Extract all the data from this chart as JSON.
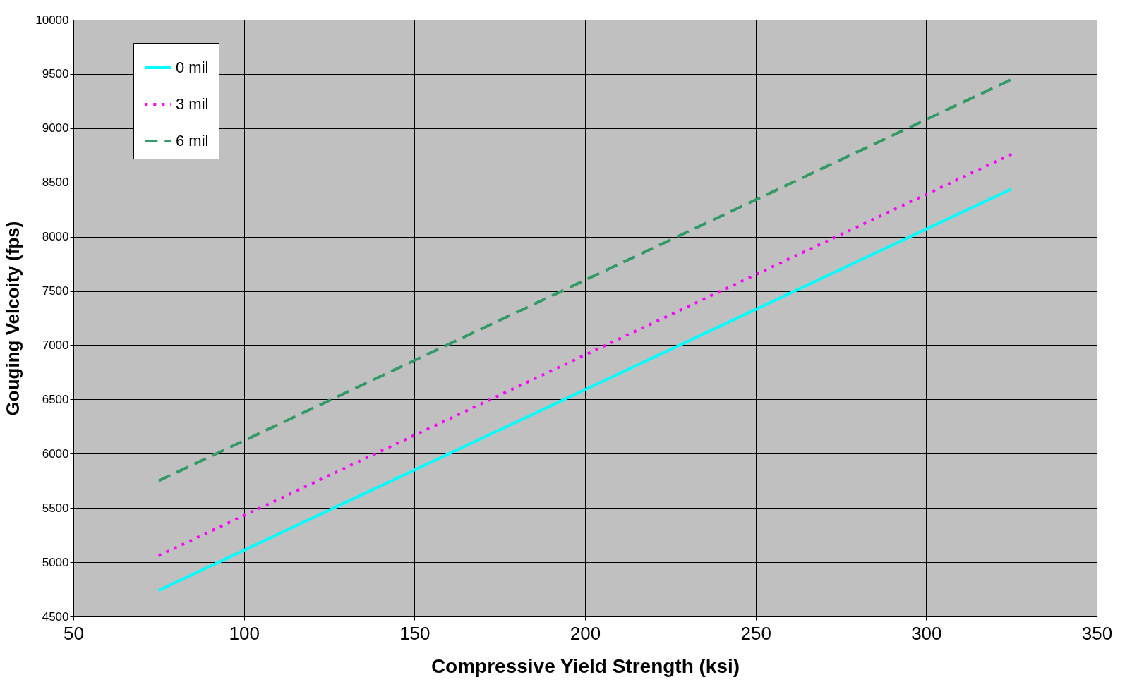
{
  "chart_data": {
    "type": "line",
    "xlabel": "Compressive Yield Strength (ksi)",
    "ylabel": "Gouging Velcoity (fps)",
    "xlim": [
      50,
      350
    ],
    "xticks": [
      50,
      100,
      150,
      200,
      250,
      300,
      350
    ],
    "ylim": [
      4500,
      10000
    ],
    "yticks": [
      4500,
      5000,
      5500,
      6000,
      6500,
      7000,
      7500,
      8000,
      8500,
      9000,
      9500,
      10000
    ],
    "grid": true,
    "legend": "top left",
    "marker": "none",
    "series": [
      {
        "name": "0 mil",
        "color": "#00ffff",
        "line_style": "solid",
        "x": [
          75,
          200,
          325
        ],
        "values": [
          4740,
          6590,
          8440
        ]
      },
      {
        "name": "3 mil",
        "color": "#ff00ff",
        "line_style": "dotted",
        "x": [
          75,
          200,
          325
        ],
        "values": [
          5060,
          6910,
          8760
        ]
      },
      {
        "name": "6 mil",
        "color": "#339966",
        "line_style": "dashed",
        "x": [
          75,
          200,
          325
        ],
        "values": [
          5750,
          7600,
          9450
        ]
      }
    ]
  }
}
